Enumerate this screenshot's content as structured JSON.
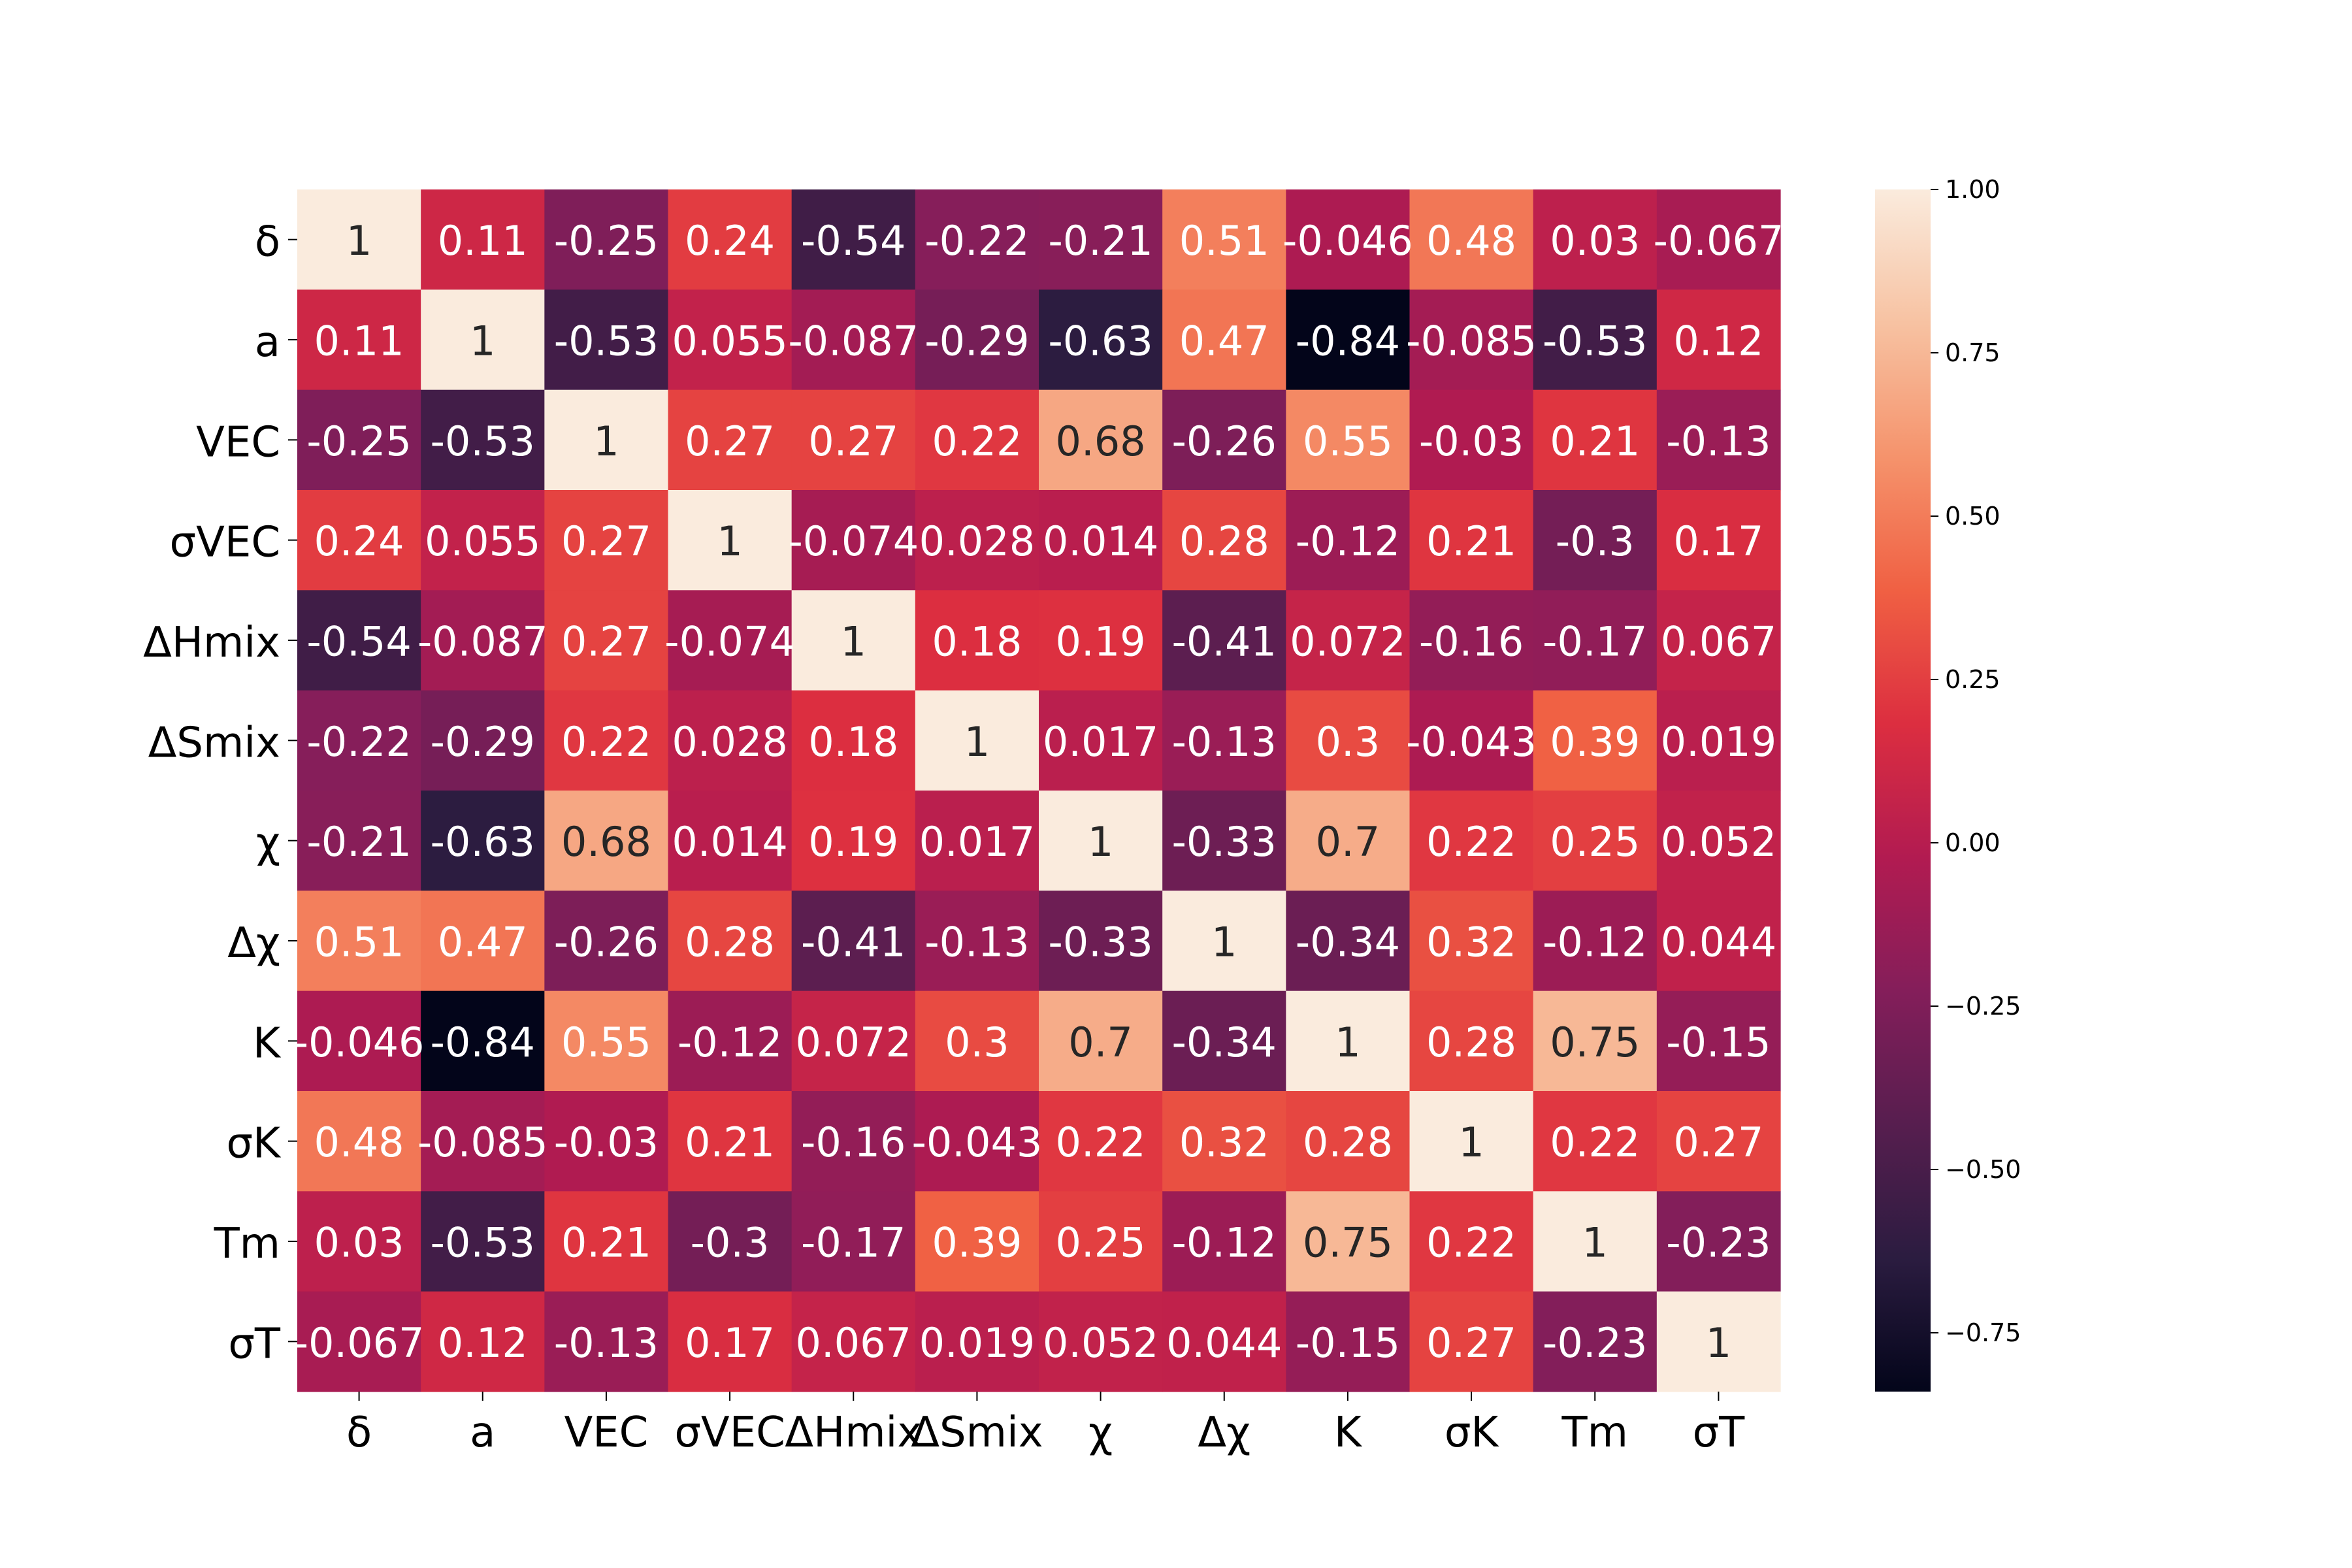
{
  "chart_data": {
    "type": "heatmap",
    "title": "",
    "xlabel": "",
    "ylabel": "",
    "row_labels": [
      "δ",
      "a",
      "VEC",
      "σVEC",
      "ΔHmix",
      "ΔSmix",
      "χ",
      "Δχ",
      "K",
      "σK",
      "Tm",
      "σT"
    ],
    "col_labels": [
      "δ",
      "a",
      "VEC",
      "σVEC",
      "ΔHmix",
      "ΔSmix",
      "χ",
      "Δχ",
      "K",
      "σK",
      "Tm",
      "σT"
    ],
    "values": [
      [
        1,
        0.11,
        -0.25,
        0.24,
        -0.54,
        -0.22,
        -0.21,
        0.51,
        -0.046,
        0.48,
        0.03,
        -0.067
      ],
      [
        0.11,
        1,
        -0.53,
        0.055,
        -0.087,
        -0.29,
        -0.63,
        0.47,
        -0.84,
        -0.085,
        -0.53,
        0.12
      ],
      [
        -0.25,
        -0.53,
        1,
        0.27,
        0.27,
        0.22,
        0.68,
        -0.26,
        0.55,
        -0.03,
        0.21,
        -0.13
      ],
      [
        0.24,
        0.055,
        0.27,
        1,
        -0.074,
        0.028,
        0.014,
        0.28,
        -0.12,
        0.21,
        -0.3,
        0.17
      ],
      [
        -0.54,
        -0.087,
        0.27,
        -0.074,
        1,
        0.18,
        0.19,
        -0.41,
        0.072,
        -0.16,
        -0.17,
        0.067
      ],
      [
        -0.22,
        -0.29,
        0.22,
        0.028,
        0.18,
        1,
        0.017,
        -0.13,
        0.3,
        -0.043,
        0.39,
        0.019
      ],
      [
        -0.21,
        -0.63,
        0.68,
        0.014,
        0.19,
        0.017,
        1,
        -0.33,
        0.7,
        0.22,
        0.25,
        0.052
      ],
      [
        0.51,
        0.47,
        -0.26,
        0.28,
        -0.41,
        -0.13,
        -0.33,
        1,
        -0.34,
        0.32,
        -0.12,
        0.044
      ],
      [
        -0.046,
        -0.84,
        0.55,
        -0.12,
        0.072,
        0.3,
        0.7,
        -0.34,
        1,
        0.28,
        0.75,
        -0.15
      ],
      [
        0.48,
        -0.085,
        -0.03,
        0.21,
        -0.16,
        -0.043,
        0.22,
        0.32,
        0.28,
        1,
        0.22,
        0.27
      ],
      [
        0.03,
        -0.53,
        0.21,
        -0.3,
        -0.17,
        0.39,
        0.25,
        -0.12,
        0.75,
        0.22,
        1,
        -0.23
      ],
      [
        -0.067,
        0.12,
        -0.13,
        0.17,
        0.067,
        0.019,
        0.052,
        0.044,
        -0.15,
        0.27,
        -0.23,
        1
      ]
    ],
    "value_labels": [
      [
        "1",
        "0.11",
        "-0.25",
        "0.24",
        "-0.54",
        "-0.22",
        "-0.21",
        "0.51",
        "-0.046",
        "0.48",
        "0.03",
        "-0.067"
      ],
      [
        "0.11",
        "1",
        "-0.53",
        "0.055",
        "-0.087",
        "-0.29",
        "-0.63",
        "0.47",
        "-0.84",
        "-0.085",
        "-0.53",
        "0.12"
      ],
      [
        "-0.25",
        "-0.53",
        "1",
        "0.27",
        "0.27",
        "0.22",
        "0.68",
        "-0.26",
        "0.55",
        "-0.03",
        "0.21",
        "-0.13"
      ],
      [
        "0.24",
        "0.055",
        "0.27",
        "1",
        "-0.074",
        "0.028",
        "0.014",
        "0.28",
        "-0.12",
        "0.21",
        "-0.3",
        "0.17"
      ],
      [
        "-0.54",
        "-0.087",
        "0.27",
        "-0.074",
        "1",
        "0.18",
        "0.19",
        "-0.41",
        "0.072",
        "-0.16",
        "-0.17",
        "0.067"
      ],
      [
        "-0.22",
        "-0.29",
        "0.22",
        "0.028",
        "0.18",
        "1",
        "0.017",
        "-0.13",
        "0.3",
        "-0.043",
        "0.39",
        "0.019"
      ],
      [
        "-0.21",
        "-0.63",
        "0.68",
        "0.014",
        "0.19",
        "0.017",
        "1",
        "-0.33",
        "0.7",
        "0.22",
        "0.25",
        "0.052"
      ],
      [
        "0.51",
        "0.47",
        "-0.26",
        "0.28",
        "-0.41",
        "-0.13",
        "-0.33",
        "1",
        "-0.34",
        "0.32",
        "-0.12",
        "0.044"
      ],
      [
        "-0.046",
        "-0.84",
        "0.55",
        "-0.12",
        "0.072",
        "0.3",
        "0.7",
        "-0.34",
        "1",
        "0.28",
        "0.75",
        "-0.15"
      ],
      [
        "0.48",
        "-0.085",
        "-0.03",
        "0.21",
        "-0.16",
        "-0.043",
        "0.22",
        "0.32",
        "0.28",
        "1",
        "0.22",
        "0.27"
      ],
      [
        "0.03",
        "-0.53",
        "0.21",
        "-0.3",
        "-0.17",
        "0.39",
        "0.25",
        "-0.12",
        "0.75",
        "0.22",
        "1",
        "-0.23"
      ],
      [
        "-0.067",
        "0.12",
        "-0.13",
        "0.17",
        "0.067",
        "0.019",
        "0.052",
        "0.044",
        "-0.15",
        "0.27",
        "-0.23",
        "1"
      ]
    ],
    "colorbar": {
      "min": -0.84,
      "max": 1.0,
      "ticks": [
        1.0,
        0.75,
        0.5,
        0.25,
        0.0,
        -0.25,
        -0.5,
        -0.75
      ],
      "tick_labels": [
        "1.00",
        "0.75",
        "0.50",
        "0.25",
        "0.00",
        "−0.25",
        "−0.50",
        "−0.75"
      ],
      "colormap": "rocket",
      "stops": [
        "#03051a",
        "#2b1c40",
        "#571e4f",
        "#841e5a",
        "#b21b51",
        "#dc2e40",
        "#f06043",
        "#f5936c",
        "#f7c2a2",
        "#faebdd"
      ]
    },
    "text_colors": {
      "light": "#ffffff",
      "dark": "#262626"
    }
  }
}
